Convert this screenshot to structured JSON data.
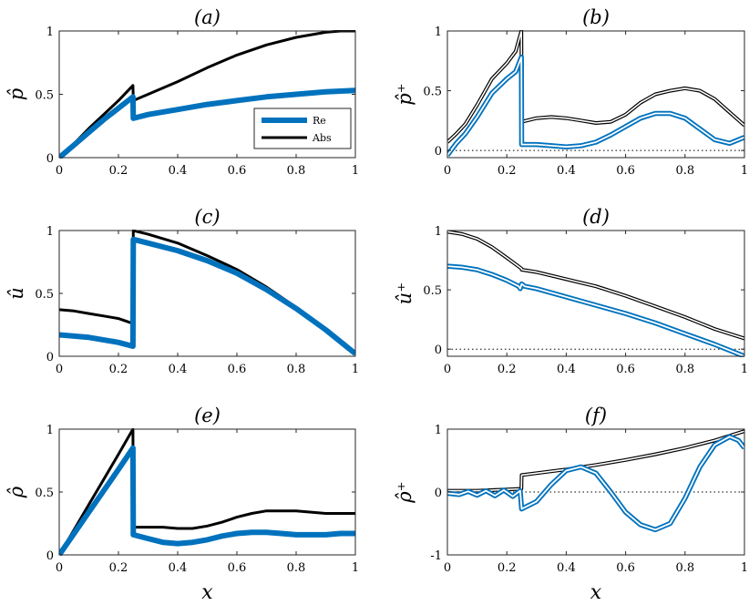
{
  "colors": {
    "re": "#0072BD",
    "abs": "#000000",
    "axis": "#262626"
  },
  "legend": {
    "re": "Re",
    "abs": "Abs"
  },
  "xlabel": "x",
  "chart_data": [
    {
      "id": "a",
      "type": "line",
      "title": "(a)",
      "ylabel": "p̂",
      "xlim": [
        0,
        1
      ],
      "ylim": [
        0,
        1
      ],
      "xticks": [
        "0",
        "0.2",
        "0.4",
        "0.6",
        "0.8",
        "1"
      ],
      "xtick_values": [
        0,
        0.2,
        0.4,
        0.6,
        0.8,
        1
      ],
      "yticks": [
        "0",
        "0.5",
        "1"
      ],
      "ytick_values": [
        0,
        0.5,
        1
      ],
      "zero_line": false,
      "legend": true,
      "series": [
        {
          "name": "Abs",
          "style": "solid",
          "x": [
            0,
            0.05,
            0.1,
            0.15,
            0.2,
            0.249,
            0.25,
            0.3,
            0.4,
            0.5,
            0.6,
            0.7,
            0.8,
            0.9,
            0.95,
            1.0
          ],
          "y": [
            0,
            0.11,
            0.23,
            0.34,
            0.45,
            0.57,
            0.45,
            0.5,
            0.6,
            0.71,
            0.81,
            0.89,
            0.95,
            0.99,
            1.0,
            1.0
          ]
        },
        {
          "name": "Re",
          "style": "thick",
          "x": [
            0,
            0.05,
            0.1,
            0.15,
            0.2,
            0.249,
            0.25,
            0.3,
            0.4,
            0.5,
            0.6,
            0.7,
            0.8,
            0.9,
            1.0
          ],
          "y": [
            0,
            0.1,
            0.2,
            0.3,
            0.39,
            0.48,
            0.31,
            0.34,
            0.38,
            0.42,
            0.45,
            0.48,
            0.5,
            0.52,
            0.53
          ]
        }
      ]
    },
    {
      "id": "b",
      "type": "line",
      "title": "(b)",
      "ylabel": "p̂⁺",
      "xlim": [
        0,
        1
      ],
      "ylim": [
        -0.06,
        1
      ],
      "xticks": [
        "0",
        "0.2",
        "0.4",
        "0.6",
        "0.8",
        "1"
      ],
      "xtick_values": [
        0,
        0.2,
        0.4,
        0.6,
        0.8,
        1
      ],
      "yticks": [
        "0",
        "0.5",
        "1"
      ],
      "ytick_values": [
        0,
        0.5,
        1
      ],
      "zero_line": true,
      "legend": false,
      "series": [
        {
          "name": "Abs",
          "style": "double",
          "x": [
            0,
            0.03,
            0.06,
            0.1,
            0.15,
            0.2,
            0.23,
            0.249,
            0.25,
            0.3,
            0.35,
            0.4,
            0.45,
            0.5,
            0.55,
            0.6,
            0.65,
            0.7,
            0.75,
            0.8,
            0.85,
            0.9,
            0.95,
            1.0
          ],
          "y": [
            0.07,
            0.14,
            0.22,
            0.38,
            0.6,
            0.73,
            0.83,
            1.0,
            0.24,
            0.27,
            0.28,
            0.27,
            0.25,
            0.23,
            0.24,
            0.3,
            0.4,
            0.47,
            0.5,
            0.52,
            0.5,
            0.43,
            0.32,
            0.21
          ]
        },
        {
          "name": "Re",
          "style": "double-blue",
          "x": [
            0,
            0.03,
            0.06,
            0.1,
            0.15,
            0.2,
            0.23,
            0.249,
            0.25,
            0.3,
            0.35,
            0.4,
            0.45,
            0.5,
            0.55,
            0.6,
            0.65,
            0.7,
            0.75,
            0.8,
            0.85,
            0.9,
            0.95,
            1.0
          ],
          "y": [
            -0.04,
            0.06,
            0.14,
            0.28,
            0.48,
            0.6,
            0.66,
            0.78,
            0.05,
            0.05,
            0.04,
            0.03,
            0.04,
            0.07,
            0.13,
            0.2,
            0.27,
            0.31,
            0.31,
            0.27,
            0.18,
            0.09,
            0.06,
            0.11
          ]
        }
      ]
    },
    {
      "id": "c",
      "type": "line",
      "title": "(c)",
      "ylabel": "û",
      "xlim": [
        0,
        1
      ],
      "ylim": [
        0,
        1
      ],
      "xticks": [
        "0",
        "0.2",
        "0.4",
        "0.6",
        "0.8",
        "1"
      ],
      "xtick_values": [
        0,
        0.2,
        0.4,
        0.6,
        0.8,
        1
      ],
      "yticks": [
        "0",
        "0.5",
        "1"
      ],
      "ytick_values": [
        0,
        0.5,
        1
      ],
      "zero_line": false,
      "legend": false,
      "series": [
        {
          "name": "Abs",
          "style": "solid",
          "x": [
            0,
            0.05,
            0.1,
            0.15,
            0.2,
            0.249,
            0.25,
            0.3,
            0.4,
            0.5,
            0.6,
            0.7,
            0.8,
            0.9,
            1.0
          ],
          "y": [
            0.37,
            0.36,
            0.34,
            0.32,
            0.3,
            0.26,
            1.0,
            0.97,
            0.9,
            0.8,
            0.69,
            0.55,
            0.39,
            0.21,
            0.02
          ]
        },
        {
          "name": "Re",
          "style": "thick",
          "x": [
            0,
            0.05,
            0.1,
            0.15,
            0.2,
            0.249,
            0.25,
            0.3,
            0.4,
            0.5,
            0.6,
            0.7,
            0.8,
            0.9,
            1.0
          ],
          "y": [
            0.17,
            0.16,
            0.15,
            0.13,
            0.11,
            0.08,
            0.93,
            0.9,
            0.84,
            0.76,
            0.66,
            0.53,
            0.38,
            0.21,
            0.02
          ]
        }
      ]
    },
    {
      "id": "d",
      "type": "line",
      "title": "(d)",
      "ylabel": "û⁺",
      "xlim": [
        0,
        1
      ],
      "ylim": [
        -0.06,
        1
      ],
      "xticks": [
        "0",
        "0.2",
        "0.4",
        "0.6",
        "0.8",
        "1"
      ],
      "xtick_values": [
        0,
        0.2,
        0.4,
        0.6,
        0.8,
        1
      ],
      "yticks": [
        "0",
        "0.5",
        "1"
      ],
      "ytick_values": [
        0,
        0.5,
        1
      ],
      "zero_line": true,
      "legend": false,
      "series": [
        {
          "name": "Abs",
          "style": "double",
          "x": [
            0,
            0.05,
            0.1,
            0.15,
            0.2,
            0.249,
            0.25,
            0.3,
            0.4,
            0.5,
            0.6,
            0.7,
            0.8,
            0.9,
            1.0
          ],
          "y": [
            0.99,
            0.97,
            0.93,
            0.86,
            0.77,
            0.68,
            0.67,
            0.65,
            0.59,
            0.53,
            0.45,
            0.36,
            0.27,
            0.17,
            0.09
          ]
        },
        {
          "name": "Re",
          "style": "double-blue",
          "x": [
            0,
            0.05,
            0.1,
            0.15,
            0.2,
            0.24,
            0.245,
            0.25,
            0.26,
            0.3,
            0.4,
            0.5,
            0.6,
            0.7,
            0.8,
            0.9,
            1.0
          ],
          "y": [
            0.7,
            0.69,
            0.67,
            0.63,
            0.58,
            0.53,
            0.51,
            0.55,
            0.53,
            0.51,
            0.44,
            0.37,
            0.3,
            0.22,
            0.13,
            0.04,
            -0.06
          ]
        }
      ]
    },
    {
      "id": "e",
      "type": "line",
      "title": "(e)",
      "ylabel": "ρ̂",
      "xlim": [
        0,
        1
      ],
      "ylim": [
        0,
        1
      ],
      "xticks": [
        "0",
        "0.2",
        "0.4",
        "0.6",
        "0.8",
        "1"
      ],
      "xtick_values": [
        0,
        0.2,
        0.4,
        0.6,
        0.8,
        1
      ],
      "yticks": [
        "0",
        "0.5",
        "1"
      ],
      "ytick_values": [
        0,
        0.5,
        1
      ],
      "zero_line": false,
      "legend": false,
      "series": [
        {
          "name": "Abs",
          "style": "solid",
          "x": [
            0,
            0.05,
            0.1,
            0.15,
            0.2,
            0.249,
            0.25,
            0.3,
            0.35,
            0.4,
            0.45,
            0.5,
            0.55,
            0.6,
            0.65,
            0.7,
            0.75,
            0.8,
            0.85,
            0.9,
            0.95,
            1.0
          ],
          "y": [
            0,
            0.2,
            0.4,
            0.6,
            0.8,
            1.0,
            0.22,
            0.22,
            0.22,
            0.21,
            0.21,
            0.23,
            0.26,
            0.3,
            0.33,
            0.35,
            0.35,
            0.35,
            0.34,
            0.33,
            0.33,
            0.33
          ]
        },
        {
          "name": "Re",
          "style": "thick",
          "x": [
            0,
            0.05,
            0.1,
            0.15,
            0.2,
            0.249,
            0.25,
            0.3,
            0.35,
            0.4,
            0.45,
            0.5,
            0.55,
            0.6,
            0.65,
            0.7,
            0.75,
            0.8,
            0.85,
            0.9,
            0.95,
            1.0
          ],
          "y": [
            0,
            0.17,
            0.34,
            0.51,
            0.68,
            0.85,
            0.16,
            0.13,
            0.1,
            0.09,
            0.1,
            0.12,
            0.15,
            0.17,
            0.18,
            0.18,
            0.17,
            0.16,
            0.16,
            0.16,
            0.17,
            0.17
          ]
        }
      ]
    },
    {
      "id": "f",
      "type": "line",
      "title": "(f)",
      "ylabel": "ρ̂⁺",
      "xlim": [
        0,
        1
      ],
      "ylim": [
        -1,
        1
      ],
      "xticks": [
        "0",
        "0.2",
        "0.4",
        "0.6",
        "0.8",
        "1"
      ],
      "xtick_values": [
        0,
        0.2,
        0.4,
        0.6,
        0.8,
        1
      ],
      "yticks": [
        "-1",
        "0",
        "1"
      ],
      "ytick_values": [
        -1,
        0,
        1
      ],
      "zero_line": true,
      "legend": false,
      "series": [
        {
          "name": "Abs",
          "style": "double",
          "x": [
            0,
            0.05,
            0.1,
            0.15,
            0.2,
            0.249,
            0.25,
            0.3,
            0.4,
            0.5,
            0.6,
            0.7,
            0.8,
            0.9,
            1.0
          ],
          "y": [
            0.02,
            0.02,
            0.02,
            0.03,
            0.04,
            0.05,
            0.27,
            0.3,
            0.36,
            0.43,
            0.51,
            0.6,
            0.7,
            0.82,
            0.97
          ]
        },
        {
          "name": "Re",
          "style": "double-blue",
          "x": [
            0,
            0.04,
            0.07,
            0.1,
            0.13,
            0.16,
            0.19,
            0.22,
            0.245,
            0.25,
            0.3,
            0.35,
            0.4,
            0.45,
            0.5,
            0.55,
            0.6,
            0.65,
            0.7,
            0.75,
            0.8,
            0.85,
            0.9,
            0.95,
            0.98,
            1.0
          ],
          "y": [
            -0.02,
            -0.04,
            0.01,
            -0.05,
            0.02,
            -0.06,
            0.03,
            -0.07,
            0.02,
            -0.27,
            -0.15,
            0.12,
            0.34,
            0.4,
            0.3,
            0.0,
            -0.32,
            -0.52,
            -0.6,
            -0.5,
            -0.1,
            0.4,
            0.75,
            0.88,
            0.82,
            0.7
          ]
        }
      ]
    }
  ]
}
